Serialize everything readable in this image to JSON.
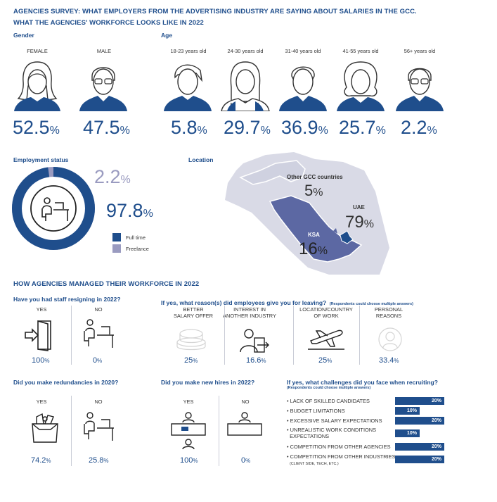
{
  "header": {
    "title": "AGENCIES SURVEY: WHAT EMPLOYERS FROM THE ADVERTISING INDUSTRY ARE SAYING ABOUT SALARIES IN THE GCC.",
    "subtitle": "WHAT THE AGENCIES' WORKFORCE LOOKS LIKE IN 2022"
  },
  "gender": {
    "label": "Gender",
    "female": {
      "label": "FEMALE",
      "value": "52.5",
      "unit": "%"
    },
    "male": {
      "label": "MALE",
      "value": "47.5",
      "unit": "%"
    }
  },
  "age": {
    "label": "Age",
    "groups": [
      {
        "label": "18-23 years old",
        "value": "5.8",
        "unit": "%"
      },
      {
        "label": "24-30 years old",
        "value": "29.7",
        "unit": "%"
      },
      {
        "label": "31-40 years old",
        "value": "36.9",
        "unit": "%"
      },
      {
        "label": "41-55 years old",
        "value": "25.7",
        "unit": "%"
      },
      {
        "label": "56+ years old",
        "value": "2.2",
        "unit": "%"
      }
    ]
  },
  "employment": {
    "label": "Employment status",
    "freelance_value": "2.2",
    "fulltime_value": "97.8",
    "unit": "%",
    "legend_fulltime": "Full time",
    "legend_freelance": "Freelance",
    "fulltime_fraction": 0.978,
    "colors": {
      "fulltime": "#1f4e8c",
      "freelance": "#9a9bc0"
    }
  },
  "location": {
    "label": "Location",
    "other": {
      "label": "Other GCC countries",
      "value": "5",
      "unit": "%"
    },
    "uae": {
      "label": "UAE",
      "value": "79",
      "unit": "%"
    },
    "ksa": {
      "label": "KSA",
      "value": "16",
      "unit": "%"
    }
  },
  "section2": {
    "title": "HOW AGENCIES MANAGED THEIR WORKFORCE IN 2022"
  },
  "resigning": {
    "question": "Have you had staff resigning in 2022?",
    "yes": {
      "label": "YES",
      "value": "100",
      "unit": "%"
    },
    "no": {
      "label": "NO",
      "value": "0",
      "unit": "%"
    }
  },
  "reasons": {
    "question": "If yes, what reason(s) did employees give you for leaving?",
    "note": "(Respondents could choose multiple answers)",
    "items": [
      {
        "line1": "BETTER",
        "line2": "SALARY OFFER",
        "value": "25",
        "unit": "%"
      },
      {
        "line1": "INTEREST IN",
        "line2": "ANOTHER INDUSTRY",
        "value": "16.6",
        "unit": "%"
      },
      {
        "line1": "LOCATION/COUNTRY",
        "line2": "OF WORK",
        "value": "25",
        "unit": "%"
      },
      {
        "line1": "PERSONAL",
        "line2": "REASONS",
        "value": "33.4",
        "unit": "%"
      }
    ]
  },
  "redundancies": {
    "question": "Did you make redundancies in 2020?",
    "yes": {
      "label": "YES",
      "value": "74.2",
      "unit": "%"
    },
    "no": {
      "label": "NO",
      "value": "25.8",
      "unit": "%"
    }
  },
  "hires": {
    "question": "Did you make new hires in 2022?",
    "yes": {
      "label": "YES",
      "value": "100",
      "unit": "%"
    },
    "no": {
      "label": "NO",
      "value": "0",
      "unit": "%"
    }
  },
  "challenges": {
    "question": "If yes, what challenges did you face when recruiting?",
    "note": "(Respondents could choose multiple answers)",
    "items": [
      {
        "label": "LACK OF SKILLED CANDIDATES",
        "sub": "",
        "value": "20%",
        "fraction": 0.2
      },
      {
        "label": "BUDGET LIMITATIONS",
        "sub": "",
        "value": "10%",
        "fraction": 0.1
      },
      {
        "label": "EXCESSIVE SALARY EXPECTATIONS",
        "sub": "",
        "value": "20%",
        "fraction": 0.2
      },
      {
        "label": "UNREALISTIC WORK CONDITIONS",
        "sub": "EXPECTATIONS",
        "value": "10%",
        "fraction": 0.1
      },
      {
        "label": "COMPETITION FROM OTHER AGENCIES",
        "sub": "",
        "value": "20%",
        "fraction": 0.2
      },
      {
        "label": "COMPETITION FROM OTHER INDUSTRIES",
        "sub": "(CLIENT SIDE, TECH, ETC.)",
        "value": "20%",
        "fraction": 0.2
      }
    ]
  }
}
